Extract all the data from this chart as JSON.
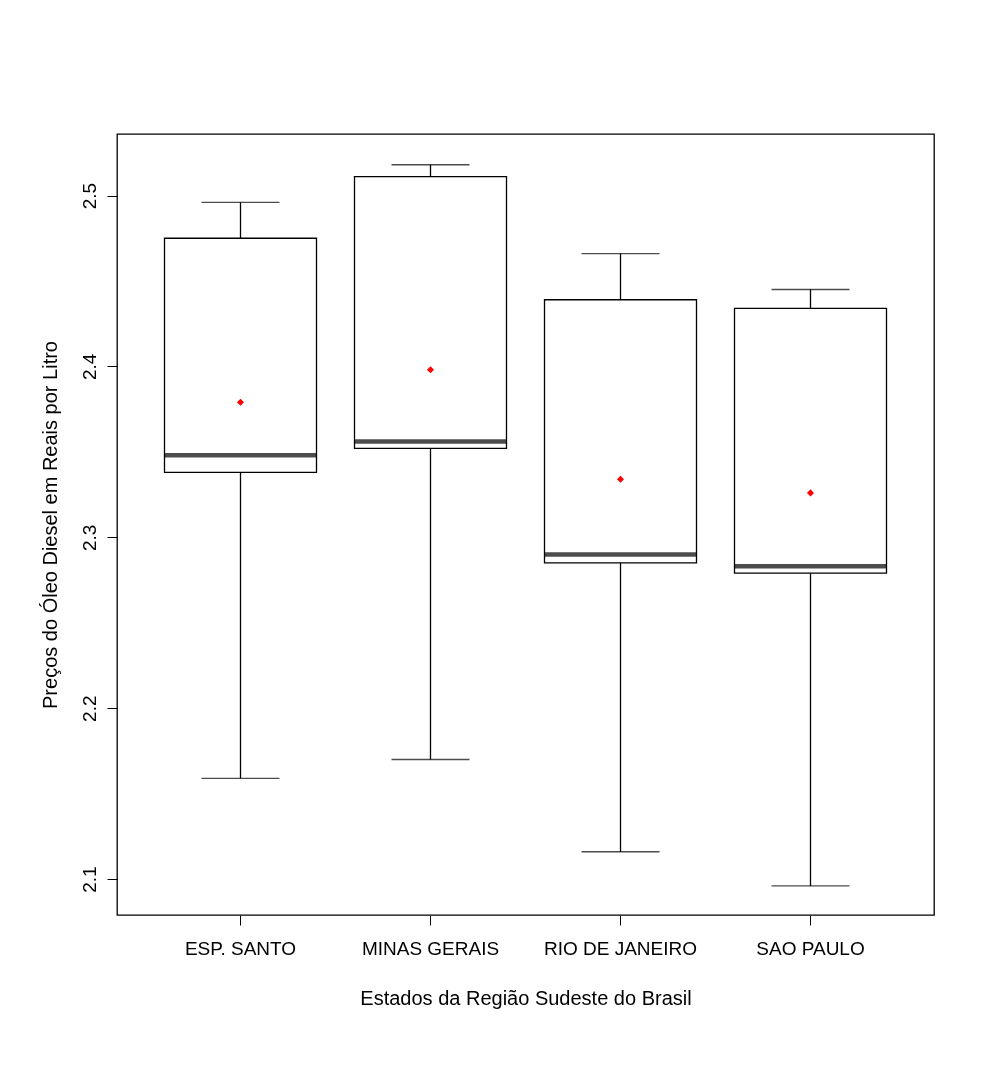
{
  "chart_data": {
    "type": "box",
    "xlabel": "Estados da Região Sudeste do Brasil",
    "ylabel": "Preços do Óleo Diesel em Reais por Litro",
    "categories": [
      "ESP. SANTO",
      "MINAS GERAIS",
      "RIO DE JANEIRO",
      "SAO PAULO"
    ],
    "boxes": [
      {
        "low": 2.159,
        "q1": 2.338,
        "median": 2.348,
        "q3": 2.475,
        "high": 2.496,
        "mean": 2.379
      },
      {
        "low": 2.17,
        "q1": 2.352,
        "median": 2.356,
        "q3": 2.511,
        "high": 2.518,
        "mean": 2.398
      },
      {
        "low": 2.116,
        "q1": 2.285,
        "median": 2.29,
        "q3": 2.439,
        "high": 2.466,
        "mean": 2.334
      },
      {
        "low": 2.096,
        "q1": 2.279,
        "median": 2.283,
        "q3": 2.434,
        "high": 2.445,
        "mean": 2.326
      }
    ],
    "ylim": [
      2.079,
      2.536
    ],
    "yticks": [
      2.1,
      2.2,
      2.3,
      2.4,
      2.5
    ],
    "grid": false
  }
}
